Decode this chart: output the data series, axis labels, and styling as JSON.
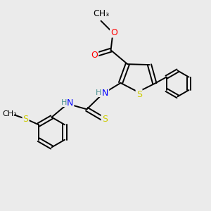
{
  "background_color": "#ebebeb",
  "atom_colors": {
    "C": "#000000",
    "H": "#4a9090",
    "N": "#0000FF",
    "O": "#FF0000",
    "S": "#cccc00"
  }
}
